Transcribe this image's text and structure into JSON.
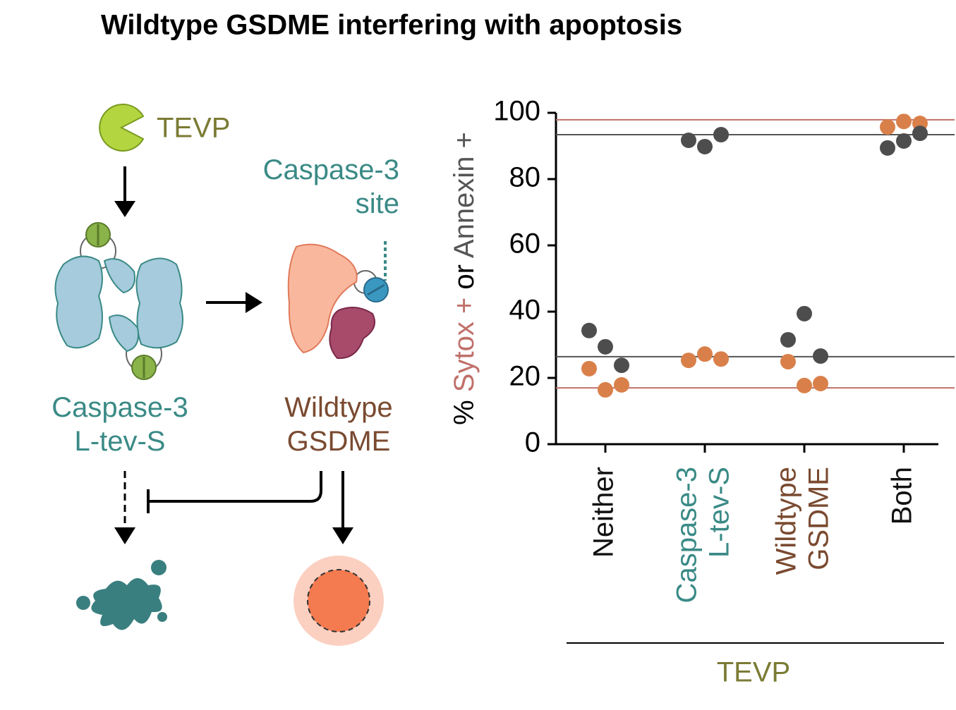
{
  "chart_data": {
    "type": "scatter",
    "title": "Wildtype GSDME interfering with apoptosis",
    "categories": [
      [
        "Neither"
      ],
      [
        "Caspase-3",
        "L-tev-S"
      ],
      [
        "Wildtype",
        "GSDME"
      ],
      [
        "Both"
      ]
    ],
    "category_colors": [
      "#111111",
      "#3a8a86",
      "#7a4a30",
      "#111111"
    ],
    "group_label": "TEVP",
    "group_label_color": "#7b7b35",
    "ylabel": {
      "prefix": "%",
      "joiner": "or"
    },
    "ylim": [
      0,
      100
    ],
    "yticks": [
      0,
      20,
      40,
      60,
      80,
      100
    ],
    "series": [
      {
        "name": "Sytox +",
        "color": "#d9804a",
        "label_color": "#c0706a",
        "line_color": "#c0706a",
        "values": [
          [
            22.8,
            16.4,
            17.9
          ],
          [
            25.3,
            27.2,
            25.7
          ],
          [
            24.9,
            17.7,
            18.3
          ],
          [
            95.7,
            97.4,
            96.8
          ]
        ],
        "reference_values": [
          17.0,
          97.9
        ]
      },
      {
        "name": "Annexin +",
        "color": "#4d4d4d",
        "label_color": "#555555",
        "line_color": "#555555",
        "values": [
          [
            34.3,
            29.4,
            23.8
          ],
          [
            91.7,
            89.8,
            93.4
          ],
          [
            31.5,
            39.4,
            26.6
          ],
          [
            89.4,
            91.5,
            93.8
          ]
        ],
        "reference_values": [
          26.4,
          93.4
        ]
      }
    ]
  },
  "diagram": {
    "protease": "TEVP",
    "site": [
      "Caspase-3",
      "site"
    ],
    "caspase": [
      "Caspase-3",
      "L-tev-S"
    ],
    "gsdme": [
      "Wildtype",
      "GSDME"
    ]
  }
}
